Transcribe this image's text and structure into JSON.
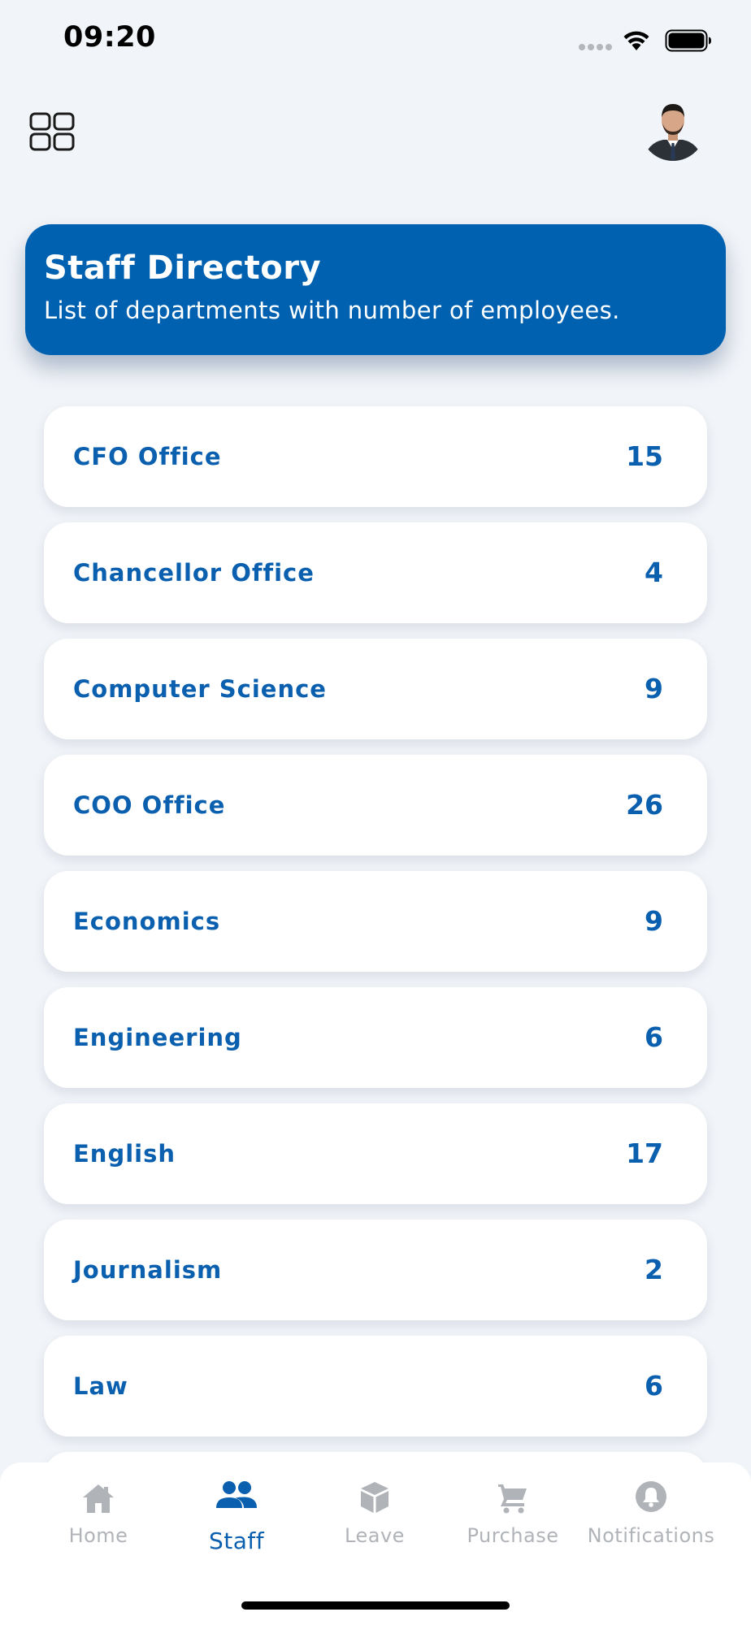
{
  "status_bar": {
    "time": "09:20"
  },
  "header": {
    "title": "Staff Directory",
    "subtitle": "List of departments with number of employees."
  },
  "departments": [
    {
      "name": "CFO Office",
      "count": "15"
    },
    {
      "name": "Chancellor Office",
      "count": "4"
    },
    {
      "name": "Computer Science",
      "count": "9"
    },
    {
      "name": "COO Office",
      "count": "26"
    },
    {
      "name": "Economics",
      "count": "9"
    },
    {
      "name": "Engineering",
      "count": "6"
    },
    {
      "name": "English",
      "count": "17"
    },
    {
      "name": "Journalism",
      "count": "2"
    },
    {
      "name": "Law",
      "count": "6"
    }
  ],
  "tabs": [
    {
      "label": "Home",
      "icon": "home-icon",
      "active": false
    },
    {
      "label": "Staff",
      "icon": "people-icon",
      "active": true
    },
    {
      "label": "Leave",
      "icon": "box-icon",
      "active": false
    },
    {
      "label": "Purchase",
      "icon": "cart-icon",
      "active": false
    },
    {
      "label": "Notifications",
      "icon": "bell-icon",
      "active": false
    }
  ],
  "colors": {
    "primary": "#0061b0",
    "text_accent": "#0a5fae",
    "background": "#f1f4f8",
    "inactive_tab": "#b0b3b8"
  }
}
